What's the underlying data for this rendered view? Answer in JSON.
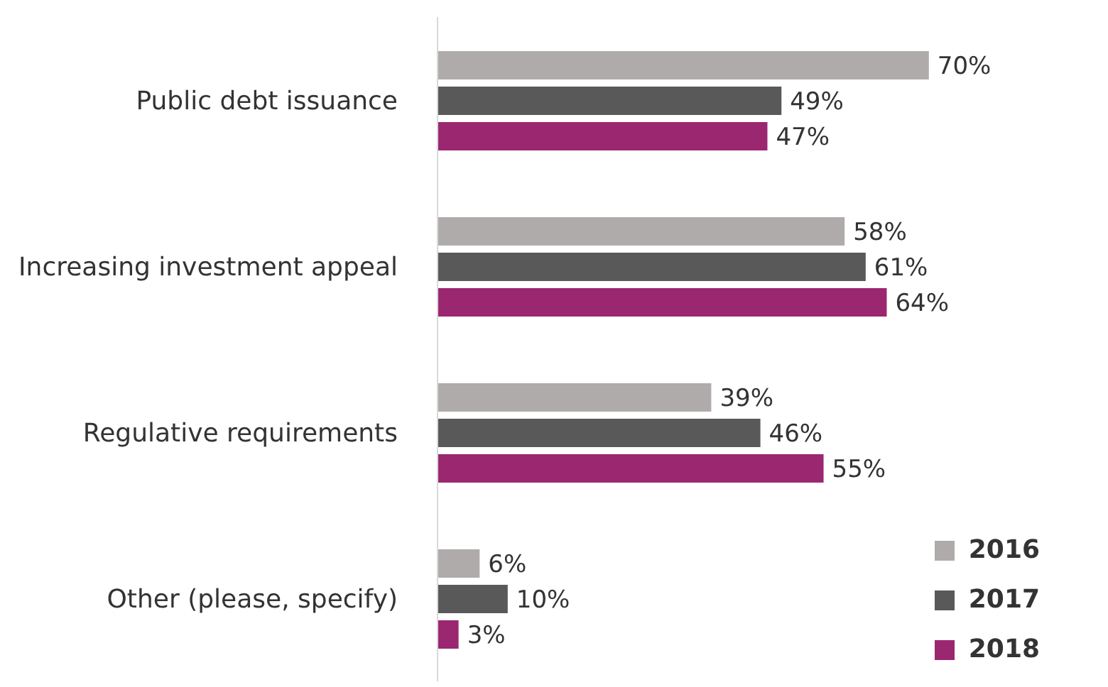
{
  "chart_data": {
    "type": "bar",
    "orientation": "horizontal",
    "categories": [
      "Public debt issuance",
      "Increasing investment appeal",
      "Regulative requirements",
      "Other (please, specify)"
    ],
    "series": [
      {
        "name": "2016",
        "color": "#b0abab",
        "values": [
          70,
          58,
          39,
          6
        ],
        "value_labels": [
          "70%",
          "58%",
          "39%",
          "6%"
        ]
      },
      {
        "name": "2017",
        "color": "#595959",
        "values": [
          49,
          61,
          46,
          10
        ],
        "value_labels": [
          "49%",
          "61%",
          "46%",
          "10%"
        ]
      },
      {
        "name": "2018",
        "color": "#9b2771",
        "values": [
          47,
          64,
          55,
          3
        ],
        "value_labels": [
          "47%",
          "64%",
          "55%",
          "3%"
        ]
      }
    ],
    "legend": "bottom right"
  }
}
